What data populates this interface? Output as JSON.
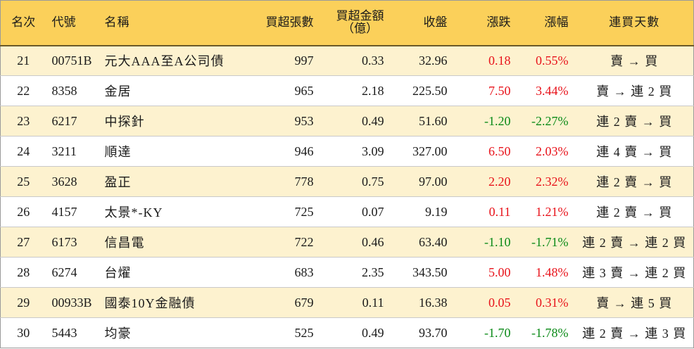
{
  "headers": {
    "rank": "名次",
    "code": "代號",
    "name": "名稱",
    "net_buy_lots": "買超張數",
    "net_buy_amount_line1": "買超金額",
    "net_buy_amount_line2": "（億）",
    "close": "收盤",
    "change": "漲跌",
    "change_pct": "漲幅",
    "streak": "連買天數"
  },
  "colors": {
    "header_bg": "#fbd05a",
    "stripe_bg": "#fdf2cf",
    "up": "#e8131b",
    "down": "#0a8a17"
  },
  "rows": [
    {
      "rank": "21",
      "code": "00751B",
      "name": "元大AAA至A公司債",
      "lots": "997",
      "amount": "0.33",
      "close": "32.96",
      "change": "0.18",
      "pct": "0.55%",
      "dir": "up",
      "streak": "賣 → 買"
    },
    {
      "rank": "22",
      "code": "8358",
      "name": "金居",
      "lots": "965",
      "amount": "2.18",
      "close": "225.50",
      "change": "7.50",
      "pct": "3.44%",
      "dir": "up",
      "streak": "賣 → 連 2 買"
    },
    {
      "rank": "23",
      "code": "6217",
      "name": "中探針",
      "lots": "953",
      "amount": "0.49",
      "close": "51.60",
      "change": "-1.20",
      "pct": "-2.27%",
      "dir": "down",
      "streak": "連 2 賣 → 買"
    },
    {
      "rank": "24",
      "code": "3211",
      "name": "順達",
      "lots": "946",
      "amount": "3.09",
      "close": "327.00",
      "change": "6.50",
      "pct": "2.03%",
      "dir": "up",
      "streak": "連 4 賣 → 買"
    },
    {
      "rank": "25",
      "code": "3628",
      "name": "盈正",
      "lots": "778",
      "amount": "0.75",
      "close": "97.00",
      "change": "2.20",
      "pct": "2.32%",
      "dir": "up",
      "streak": "連 2 賣 → 買"
    },
    {
      "rank": "26",
      "code": "4157",
      "name": "太景*-KY",
      "lots": "725",
      "amount": "0.07",
      "close": "9.19",
      "change": "0.11",
      "pct": "1.21%",
      "dir": "up",
      "streak": "連 2 賣 → 買"
    },
    {
      "rank": "27",
      "code": "6173",
      "name": "信昌電",
      "lots": "722",
      "amount": "0.46",
      "close": "63.40",
      "change": "-1.10",
      "pct": "-1.71%",
      "dir": "down",
      "streak": "連 2 賣 → 連 2 買"
    },
    {
      "rank": "28",
      "code": "6274",
      "name": "台燿",
      "lots": "683",
      "amount": "2.35",
      "close": "343.50",
      "change": "5.00",
      "pct": "1.48%",
      "dir": "up",
      "streak": "連 3 賣 → 連 2 買"
    },
    {
      "rank": "29",
      "code": "00933B",
      "name": "國泰10Y金融債",
      "lots": "679",
      "amount": "0.11",
      "close": "16.38",
      "change": "0.05",
      "pct": "0.31%",
      "dir": "up",
      "streak": "賣 → 連 5 買"
    },
    {
      "rank": "30",
      "code": "5443",
      "name": "均豪",
      "lots": "525",
      "amount": "0.49",
      "close": "93.70",
      "change": "-1.70",
      "pct": "-1.78%",
      "dir": "down",
      "streak": "連 2 賣 → 連 3 買"
    }
  ]
}
